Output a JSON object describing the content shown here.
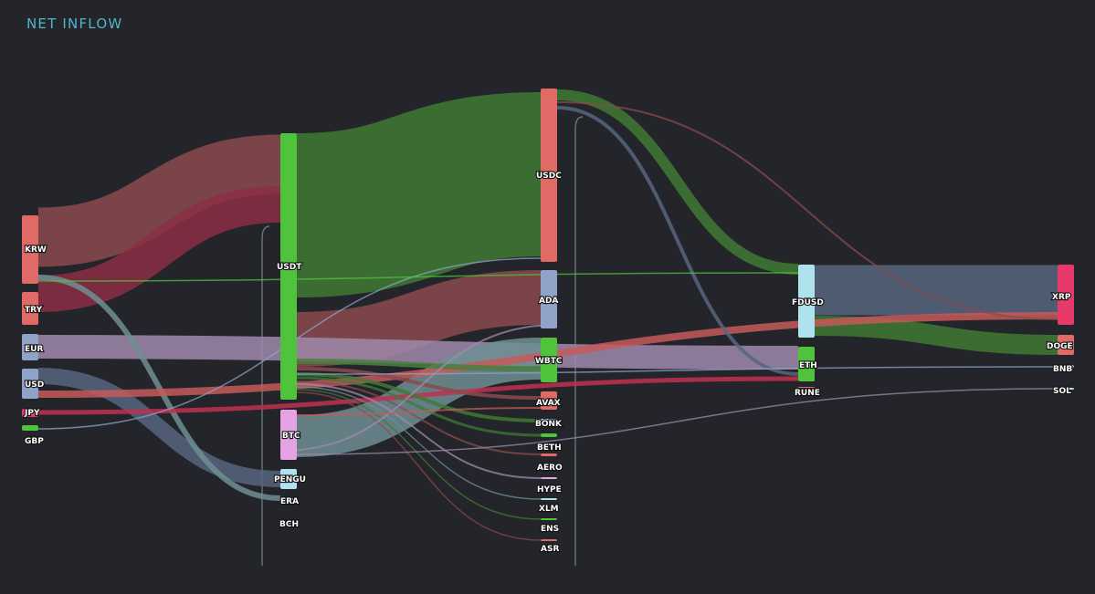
{
  "title": "NET INFLOW",
  "chart_data": {
    "type": "sankey",
    "title": "NET INFLOW",
    "nodes": [
      {
        "id": "KRW",
        "color": "#e06a66"
      },
      {
        "id": "TRY",
        "color": "#e06a66"
      },
      {
        "id": "EUR",
        "color": "#8fa3c9"
      },
      {
        "id": "USD",
        "color": "#8fa3c9"
      },
      {
        "id": "JPY",
        "color": "#e63a6a"
      },
      {
        "id": "GBP",
        "color": "#4fc33b"
      },
      {
        "id": "USDT",
        "color": "#4fc33b"
      },
      {
        "id": "BTC",
        "color": "#e6a3e3"
      },
      {
        "id": "PENGU",
        "color": "#aee3ee"
      },
      {
        "id": "ERA",
        "color": "#8fa3c9"
      },
      {
        "id": "BCH",
        "color": "#8fa3c9"
      },
      {
        "id": "USDC",
        "color": "#e06a66"
      },
      {
        "id": "ADA",
        "color": "#8fa3c9"
      },
      {
        "id": "WBTC",
        "color": "#4fc33b"
      },
      {
        "id": "AVAX",
        "color": "#e06a66"
      },
      {
        "id": "BONK",
        "color": "#aee3ee"
      },
      {
        "id": "BETH",
        "color": "#4fc33b"
      },
      {
        "id": "AERO",
        "color": "#e06a66"
      },
      {
        "id": "HYPE",
        "color": "#e6a3e3"
      },
      {
        "id": "XLM",
        "color": "#aee3ee"
      },
      {
        "id": "ENS",
        "color": "#4fc33b"
      },
      {
        "id": "ASR",
        "color": "#e06a66"
      },
      {
        "id": "FDUSD",
        "color": "#aee3ee"
      },
      {
        "id": "ETH",
        "color": "#4fc33b"
      },
      {
        "id": "RUNE",
        "color": "#e06a66"
      },
      {
        "id": "XRP",
        "color": "#e63a6a"
      },
      {
        "id": "DOGE",
        "color": "#e06a66"
      },
      {
        "id": "BNB",
        "color": "#8fa3c9"
      },
      {
        "id": "SOL",
        "color": "#aee3ee"
      }
    ],
    "links": [
      {
        "source": "USDT",
        "target": "USDC",
        "value": 135,
        "color": "#3f7a35"
      },
      {
        "source": "KRW",
        "target": "USDT",
        "value": 65,
        "color": "#8a4a4d"
      },
      {
        "source": "TRY",
        "target": "USDT",
        "value": 40,
        "color": "#8c2e45"
      },
      {
        "source": "USDT",
        "target": "ADA",
        "value": 60,
        "color": "#8a4a4d"
      },
      {
        "source": "EUR",
        "target": "ETH",
        "value": 25,
        "color": "#a089ad"
      },
      {
        "source": "BTC",
        "target": "WBTC",
        "value": 45,
        "color": "#6f8f93"
      },
      {
        "source": "USDC",
        "target": "FDUSD",
        "value": 12,
        "color": "#3f7a35"
      },
      {
        "source": "FDUSD",
        "target": "XRP",
        "value": 55,
        "color": "#56657e"
      },
      {
        "source": "FDUSD",
        "target": "DOGE",
        "value": 22,
        "color": "#3f7a35"
      },
      {
        "source": "USD",
        "target": "PENGU",
        "value": 16,
        "color": "#56657e"
      },
      {
        "source": "KRW",
        "target": "ERA",
        "value": 6,
        "color": "#6f8f93"
      },
      {
        "source": "USD",
        "target": "XRP",
        "value": 10,
        "color": "#c45a5a"
      },
      {
        "source": "JPY",
        "target": "ETH",
        "value": 5,
        "color": "#c03050"
      },
      {
        "source": "USDC",
        "target": "RUNE",
        "value": 5,
        "color": "#56657e"
      },
      {
        "source": "USDT",
        "target": "WBTC",
        "value": 8,
        "color": "#4a7f3f"
      },
      {
        "source": "USDT",
        "target": "AVAX",
        "value": 6,
        "color": "#8a4a4d"
      },
      {
        "source": "USDT",
        "target": "BONK",
        "value": 5,
        "color": "#3f7a35"
      },
      {
        "source": "USDT",
        "target": "BETH",
        "value": 3,
        "color": "#3f7a35"
      },
      {
        "source": "USDT",
        "target": "AERO",
        "value": 2,
        "color": "#8a4a4d"
      },
      {
        "source": "USDT",
        "target": "HYPE",
        "value": 2,
        "color": "#a089ad"
      },
      {
        "source": "USDT",
        "target": "XLM",
        "value": 1,
        "color": "#6f8f93"
      },
      {
        "source": "USDT",
        "target": "ENS",
        "value": 1,
        "color": "#3f7a35"
      },
      {
        "source": "USDT",
        "target": "ASR",
        "value": 1,
        "color": "#8a4a4d"
      },
      {
        "source": "USDC",
        "target": "XRP",
        "value": 3,
        "color": "#8a4a4d"
      },
      {
        "source": "ADA",
        "target": "BTC",
        "value": 3,
        "color": "#a089ad"
      },
      {
        "source": "BTC",
        "target": "AVAX",
        "value": 2,
        "color": "#c45a5a"
      },
      {
        "source": "BTC",
        "target": "SOL",
        "value": 1,
        "color": "#a089ad"
      },
      {
        "source": "GBP",
        "target": "USDC",
        "value": 1,
        "color": "#8fa3c9"
      },
      {
        "source": "KRW",
        "target": "FDUSD",
        "value": 1,
        "color": "#4fc33b"
      },
      {
        "source": "USDT",
        "target": "BNB",
        "value": 1,
        "color": "#8fa3c9"
      }
    ]
  }
}
